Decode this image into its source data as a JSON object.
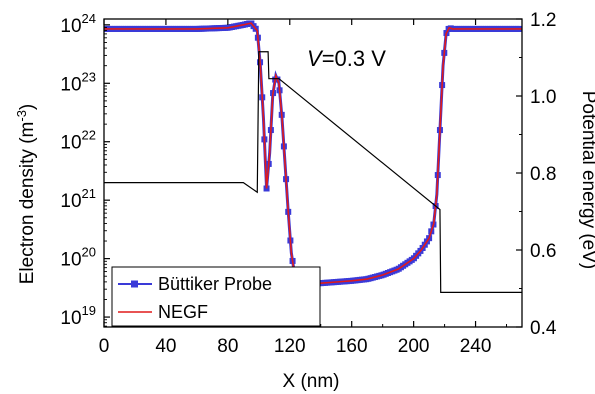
{
  "chart_data": {
    "type": "line",
    "annotation": {
      "italic": "V",
      "rest": "=0.3 V"
    },
    "xlabel": "X (nm)",
    "ylabel_left": "Electron density (m",
    "ylabel_left_sup": "-3",
    "ylabel_left_end": ")",
    "ylabel_right": "Potential energy (eV)",
    "xlim": [
      0,
      270
    ],
    "ylim_left_log10": [
      18.83,
      24.1
    ],
    "ylim_right": [
      0.4,
      1.2
    ],
    "x_ticks": [
      "0",
      "40",
      "80",
      "120",
      "160",
      "200",
      "240"
    ],
    "x_tick_values": [
      0,
      40,
      80,
      120,
      160,
      200,
      240
    ],
    "y_left_ticks": [
      {
        "base": "10",
        "exp": "19",
        "value": 19
      },
      {
        "base": "10",
        "exp": "20",
        "value": 20
      },
      {
        "base": "10",
        "exp": "21",
        "value": 21
      },
      {
        "base": "10",
        "exp": "22",
        "value": 22
      },
      {
        "base": "10",
        "exp": "23",
        "value": 23
      },
      {
        "base": "10",
        "exp": "24",
        "value": 24
      }
    ],
    "y_right_ticks": [
      "0.4",
      "0.6",
      "0.8",
      "1.0",
      "1.2"
    ],
    "y_right_tick_values": [
      0.4,
      0.6,
      0.8,
      1.0,
      1.2
    ],
    "legend": {
      "placement": "bottom-left"
    },
    "colors": {
      "buttiker": "#3a3ad8",
      "negf": "#e11a1a",
      "potential": "#000000"
    },
    "series": [
      {
        "name": "Büttiker Probe",
        "axis": "left",
        "marker": "square",
        "x": [
          0,
          20,
          40,
          60,
          80,
          90,
          95,
          99,
          101,
          103,
          105,
          107,
          109,
          111,
          113,
          115,
          117,
          119,
          121,
          123,
          125,
          130,
          140,
          150,
          160,
          170,
          180,
          190,
          200,
          205,
          210,
          213,
          215,
          217,
          219,
          221,
          223,
          225,
          230,
          250,
          270
        ],
        "log10_density": [
          23.93,
          23.93,
          23.93,
          23.93,
          23.95,
          24.0,
          24.03,
          23.9,
          23.3,
          22.4,
          21.2,
          21.8,
          22.8,
          23.13,
          23.0,
          22.4,
          21.6,
          20.8,
          20.1,
          19.75,
          19.62,
          19.58,
          19.58,
          19.6,
          19.62,
          19.65,
          19.72,
          19.82,
          20.0,
          20.15,
          20.35,
          20.6,
          21.1,
          22.2,
          23.3,
          23.85,
          23.95,
          23.93,
          23.93,
          23.93,
          23.93
        ]
      },
      {
        "name": "NEGF",
        "axis": "left",
        "marker": "none",
        "x": [
          0,
          20,
          40,
          60,
          80,
          90,
          95,
          99,
          101,
          103,
          105,
          107,
          109,
          111,
          113,
          115,
          117,
          119,
          121,
          123,
          125,
          130,
          140,
          150,
          160,
          170,
          180,
          190,
          200,
          205,
          210,
          213,
          215,
          217,
          219,
          221,
          223,
          225,
          230,
          250,
          270
        ],
        "log10_density": [
          23.93,
          23.93,
          23.93,
          23.93,
          23.95,
          24.0,
          24.03,
          23.9,
          23.3,
          22.4,
          21.2,
          21.8,
          22.8,
          23.13,
          23.0,
          22.4,
          21.6,
          20.8,
          20.1,
          19.75,
          19.62,
          19.58,
          19.58,
          19.6,
          19.62,
          19.65,
          19.72,
          19.82,
          20.0,
          20.15,
          20.35,
          20.6,
          21.1,
          22.2,
          23.3,
          23.85,
          23.95,
          23.93,
          23.93,
          23.93,
          23.93
        ]
      },
      {
        "name": "",
        "axis": "right",
        "marker": "none",
        "x": [
          0,
          90,
          99,
          100,
          106,
          106.5,
          113,
          217,
          217.5,
          270
        ],
        "potential_eV": [
          0.775,
          0.775,
          0.75,
          1.115,
          1.115,
          1.045,
          1.045,
          0.705,
          0.49,
          0.49
        ]
      }
    ]
  }
}
